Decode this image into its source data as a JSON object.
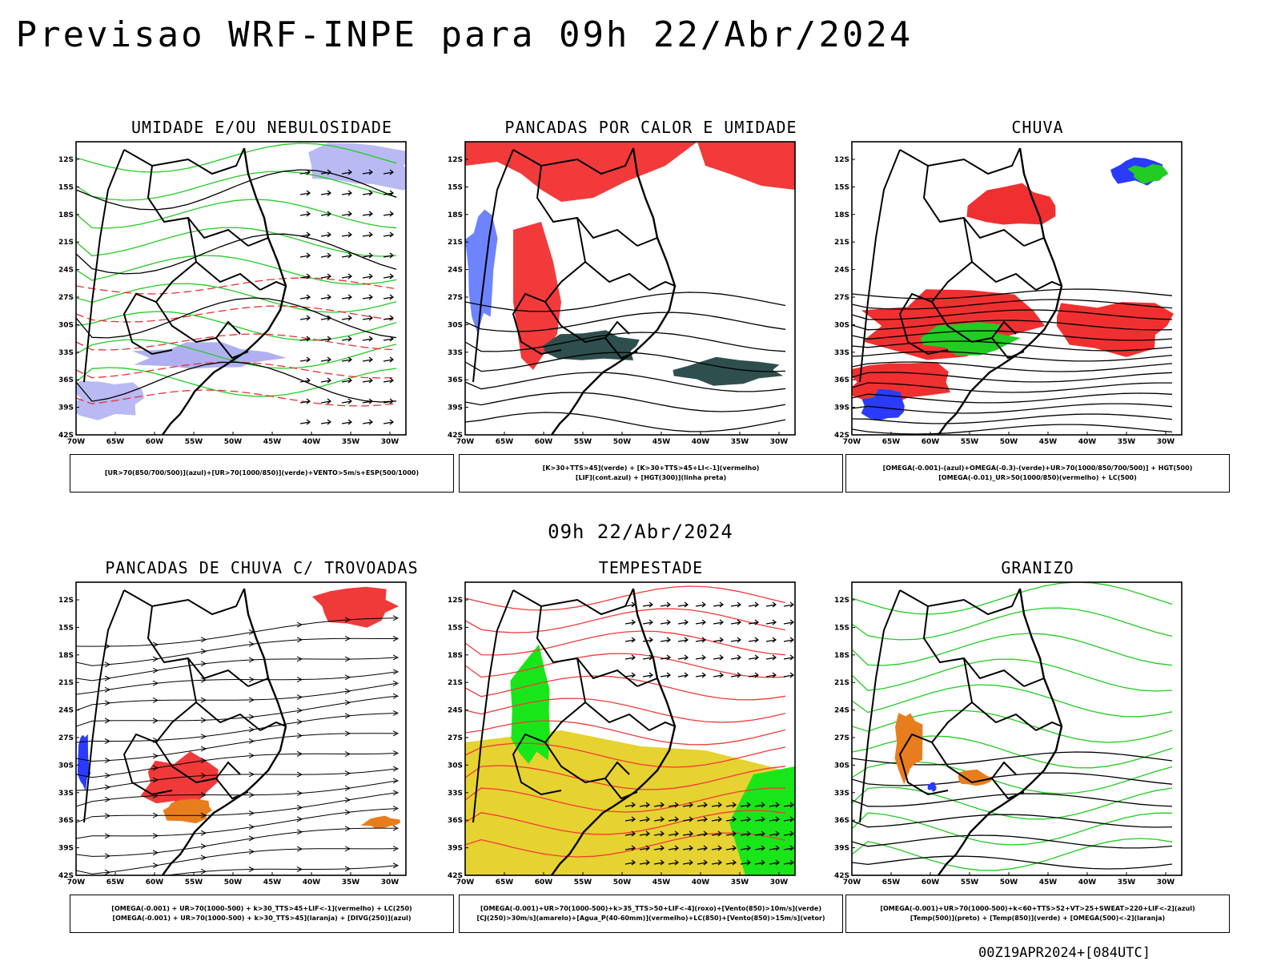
{
  "header": {
    "title": "Previsao WRF-INPE  para 09h 22/Abr/2024",
    "subtitle": "09h 22/Abr/2024",
    "run_stamp": "00Z19APR2024+[084UTC]"
  },
  "axes": {
    "lat_labels": [
      "12S",
      "15S",
      "18S",
      "21S",
      "24S",
      "27S",
      "30S",
      "33S",
      "36S",
      "39S",
      "42S"
    ],
    "lon_labels": [
      "70W",
      "65W",
      "60W",
      "55W",
      "50W",
      "45W",
      "40W",
      "35W",
      "30W"
    ]
  },
  "panels": [
    {
      "title": "UMIDADE E/OU NEBULOSIDADE",
      "legend": [
        "[UR>70(850/700/500)](azul)+[UR>70(1000/850)](verde)+VENTO>5m/s+ESP(500/1000)"
      ],
      "overlay": "humidity",
      "colors": {
        "blue": "#a7a7f0",
        "green": "#22cc22",
        "red": "#e53030"
      }
    },
    {
      "title": "PANCADAS POR CALOR E UMIDADE",
      "legend": [
        "[K>30+TTS>45](verde) + [K>30+TTS>45+LI<-1](vermelho)",
        "[LIF](cont.azul) + [HGT(300)](linha preta)"
      ],
      "overlay": "heat",
      "colors": {
        "red": "#f23a3a",
        "dark": "#2f4f4f",
        "blue": "#3050ff"
      }
    },
    {
      "title": "CHUVA",
      "legend": [
        "[OMEGA(-0.001)-(azul)+OMEGA(-0.3)-(verde)+UR>70(1000/850/700/500)] + HGT(500)",
        "[OMEGA(-0.01)_UR>50(1000/850)(vermelho) + LC(500)"
      ],
      "overlay": "rain",
      "colors": {
        "red": "#f03030",
        "green": "#22cc22",
        "blue": "#2a3bff"
      }
    },
    {
      "title": "PANCADAS DE CHUVA C/ TROVOADAS",
      "legend": [
        "[OMEGA(-0.001) + UR>70(1000-500) + k>30_TTS>45+LIF<-1](vermelho) + LC(250)",
        "[OMEGA(-0.001) + UR>70(1000-500) + k>30_TTS>45](laranja) + [DIVG(250)](azul)"
      ],
      "overlay": "storms",
      "colors": {
        "red": "#f03a3a",
        "orange": "#e87d1e",
        "blue": "#2a3bff"
      }
    },
    {
      "title": "TEMPESTADE",
      "legend": [
        "[OMEGA(-0.001)+UR>70(1000-500)+k>35_TTS>50+LIF<-4](roxo)+[Vento(850)>10m/s](verde)",
        "[CJ(250)>30m/s](amarelo)+[Agua_P(40-60mm)](vermelho)+LC(850)+[Vento(850)>15m/s](vetor)"
      ],
      "overlay": "tempest",
      "colors": {
        "yellow": "#e6d230",
        "green": "#19e619",
        "red": "#f03a3a"
      }
    },
    {
      "title": "GRANIZO",
      "legend": [
        "[OMEGA(-0.001)+UR>70(1000-500)+k<60+TTS>52+VT>25+SWEAT>220+LIF<-2](azul)",
        "[Temp(500)](preto) + [Temp(850)](verde) + [OMEGA(500)<-2](laranja)"
      ],
      "overlay": "hail",
      "colors": {
        "green": "#22cc22",
        "orange": "#e87d1e",
        "blue": "#2a3bff"
      }
    }
  ]
}
